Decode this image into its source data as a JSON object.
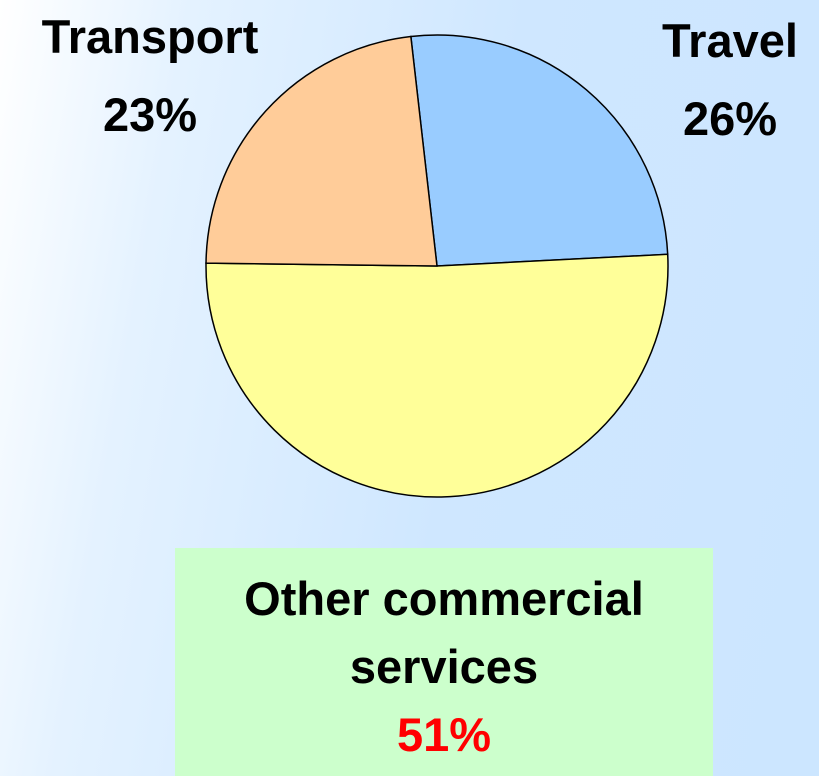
{
  "chart_data": {
    "type": "pie",
    "categories": [
      "Travel",
      "Other commercial services",
      "Transport"
    ],
    "values": [
      26,
      51,
      23
    ],
    "value_labels": [
      "26%",
      "51%",
      "23%"
    ],
    "colors": [
      "#99ccff",
      "#ffff99",
      "#ffcc99"
    ]
  }
}
